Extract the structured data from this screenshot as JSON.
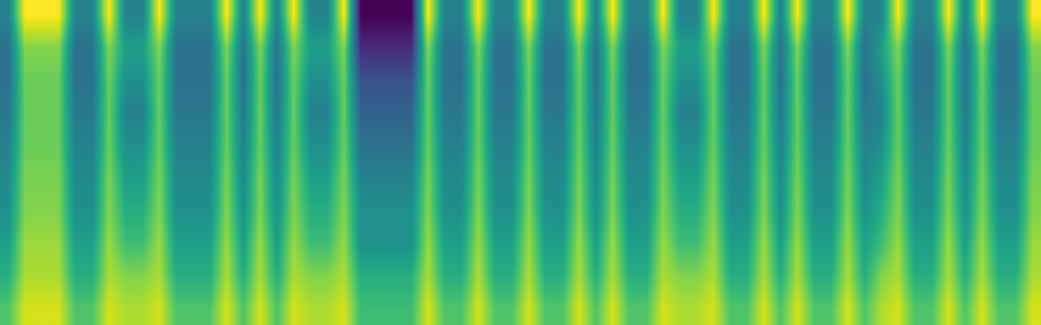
{
  "chart_data": {
    "type": "heatmap",
    "color": "viridis",
    "tick_labels": false,
    "cells": [
      [
        0.45,
        0.9,
        0.9,
        0.9,
        0.45,
        0.45,
        0.9,
        0.45,
        0.45,
        0.9,
        0.45,
        0.45,
        0.45,
        0.9,
        0.45,
        0.9,
        0.45,
        0.9,
        0.45,
        0.45,
        0.9,
        0.1,
        0.1,
        0.1,
        0.1,
        0.9,
        0.45,
        0.45,
        0.9,
        0.45,
        0.45,
        0.9,
        0.45,
        0.45,
        0.9,
        0.45,
        0.9,
        0.45,
        0.45,
        0.9,
        0.45,
        0.45,
        0.9,
        0.45,
        0.45,
        0.9,
        0.45,
        0.9,
        0.45,
        0.45,
        0.9,
        0.45,
        0.45,
        0.9,
        0.45,
        0.45,
        0.9,
        0.45,
        0.9,
        0.45,
        0.45,
        0.9
      ],
      [
        0.4,
        0.75,
        0.75,
        0.75,
        0.4,
        0.4,
        0.75,
        0.55,
        0.55,
        0.75,
        0.4,
        0.4,
        0.4,
        0.75,
        0.4,
        0.75,
        0.4,
        0.75,
        0.55,
        0.55,
        0.75,
        0.2,
        0.2,
        0.2,
        0.2,
        0.75,
        0.4,
        0.4,
        0.75,
        0.4,
        0.4,
        0.75,
        0.4,
        0.4,
        0.75,
        0.4,
        0.75,
        0.4,
        0.4,
        0.75,
        0.55,
        0.55,
        0.75,
        0.4,
        0.4,
        0.75,
        0.4,
        0.75,
        0.4,
        0.4,
        0.75,
        0.4,
        0.55,
        0.75,
        0.4,
        0.4,
        0.75,
        0.4,
        0.75,
        0.4,
        0.4,
        0.75
      ],
      [
        0.4,
        0.72,
        0.72,
        0.72,
        0.4,
        0.4,
        0.72,
        0.5,
        0.5,
        0.72,
        0.4,
        0.4,
        0.4,
        0.72,
        0.4,
        0.72,
        0.4,
        0.72,
        0.5,
        0.5,
        0.72,
        0.3,
        0.3,
        0.3,
        0.3,
        0.72,
        0.4,
        0.4,
        0.72,
        0.4,
        0.4,
        0.72,
        0.4,
        0.4,
        0.72,
        0.4,
        0.72,
        0.4,
        0.4,
        0.72,
        0.5,
        0.5,
        0.72,
        0.4,
        0.4,
        0.72,
        0.4,
        0.72,
        0.4,
        0.4,
        0.72,
        0.4,
        0.5,
        0.72,
        0.4,
        0.4,
        0.72,
        0.4,
        0.72,
        0.4,
        0.4,
        0.72
      ],
      [
        0.42,
        0.72,
        0.72,
        0.72,
        0.42,
        0.42,
        0.72,
        0.45,
        0.45,
        0.72,
        0.42,
        0.42,
        0.42,
        0.72,
        0.42,
        0.72,
        0.42,
        0.72,
        0.45,
        0.45,
        0.72,
        0.35,
        0.35,
        0.35,
        0.35,
        0.72,
        0.42,
        0.42,
        0.72,
        0.42,
        0.42,
        0.72,
        0.42,
        0.42,
        0.72,
        0.42,
        0.72,
        0.42,
        0.42,
        0.72,
        0.45,
        0.45,
        0.72,
        0.42,
        0.42,
        0.72,
        0.42,
        0.72,
        0.42,
        0.42,
        0.72,
        0.42,
        0.45,
        0.72,
        0.42,
        0.42,
        0.72,
        0.42,
        0.72,
        0.42,
        0.42,
        0.72
      ],
      [
        0.45,
        0.72,
        0.72,
        0.72,
        0.45,
        0.45,
        0.72,
        0.5,
        0.5,
        0.72,
        0.45,
        0.45,
        0.45,
        0.72,
        0.45,
        0.72,
        0.45,
        0.72,
        0.5,
        0.5,
        0.72,
        0.4,
        0.4,
        0.4,
        0.4,
        0.72,
        0.45,
        0.45,
        0.72,
        0.45,
        0.45,
        0.72,
        0.45,
        0.45,
        0.72,
        0.45,
        0.72,
        0.45,
        0.45,
        0.72,
        0.5,
        0.5,
        0.72,
        0.45,
        0.45,
        0.72,
        0.45,
        0.72,
        0.45,
        0.45,
        0.72,
        0.45,
        0.5,
        0.72,
        0.45,
        0.45,
        0.72,
        0.45,
        0.72,
        0.45,
        0.45,
        0.72
      ],
      [
        0.48,
        0.74,
        0.74,
        0.74,
        0.48,
        0.48,
        0.74,
        0.55,
        0.55,
        0.74,
        0.48,
        0.48,
        0.48,
        0.74,
        0.48,
        0.74,
        0.48,
        0.74,
        0.55,
        0.55,
        0.74,
        0.45,
        0.45,
        0.45,
        0.45,
        0.74,
        0.48,
        0.48,
        0.74,
        0.48,
        0.48,
        0.74,
        0.48,
        0.48,
        0.74,
        0.48,
        0.74,
        0.48,
        0.48,
        0.74,
        0.55,
        0.55,
        0.74,
        0.48,
        0.48,
        0.74,
        0.48,
        0.74,
        0.48,
        0.48,
        0.74,
        0.48,
        0.55,
        0.74,
        0.48,
        0.48,
        0.74,
        0.48,
        0.74,
        0.48,
        0.48,
        0.74
      ],
      [
        0.5,
        0.75,
        0.75,
        0.75,
        0.5,
        0.5,
        0.75,
        0.6,
        0.6,
        0.75,
        0.5,
        0.5,
        0.5,
        0.75,
        0.5,
        0.75,
        0.5,
        0.75,
        0.6,
        0.6,
        0.75,
        0.5,
        0.5,
        0.5,
        0.5,
        0.75,
        0.5,
        0.5,
        0.75,
        0.5,
        0.5,
        0.75,
        0.5,
        0.5,
        0.75,
        0.5,
        0.75,
        0.5,
        0.5,
        0.75,
        0.6,
        0.6,
        0.75,
        0.5,
        0.5,
        0.75,
        0.5,
        0.75,
        0.5,
        0.5,
        0.75,
        0.5,
        0.6,
        0.75,
        0.5,
        0.5,
        0.75,
        0.5,
        0.75,
        0.5,
        0.5,
        0.75
      ],
      [
        0.55,
        0.78,
        0.78,
        0.78,
        0.55,
        0.55,
        0.78,
        0.65,
        0.65,
        0.78,
        0.55,
        0.55,
        0.55,
        0.78,
        0.55,
        0.78,
        0.55,
        0.78,
        0.65,
        0.65,
        0.78,
        0.5,
        0.5,
        0.5,
        0.5,
        0.78,
        0.55,
        0.55,
        0.78,
        0.55,
        0.55,
        0.78,
        0.55,
        0.55,
        0.78,
        0.55,
        0.78,
        0.55,
        0.55,
        0.78,
        0.65,
        0.65,
        0.78,
        0.55,
        0.55,
        0.78,
        0.55,
        0.78,
        0.55,
        0.55,
        0.78,
        0.55,
        0.65,
        0.78,
        0.55,
        0.55,
        0.78,
        0.55,
        0.78,
        0.55,
        0.55,
        0.78
      ],
      [
        0.6,
        0.8,
        0.8,
        0.8,
        0.6,
        0.6,
        0.8,
        0.75,
        0.75,
        0.8,
        0.6,
        0.6,
        0.6,
        0.8,
        0.6,
        0.8,
        0.6,
        0.8,
        0.75,
        0.75,
        0.8,
        0.6,
        0.6,
        0.6,
        0.6,
        0.8,
        0.6,
        0.6,
        0.8,
        0.6,
        0.6,
        0.8,
        0.6,
        0.6,
        0.8,
        0.6,
        0.8,
        0.6,
        0.6,
        0.8,
        0.75,
        0.75,
        0.8,
        0.6,
        0.6,
        0.8,
        0.6,
        0.8,
        0.6,
        0.6,
        0.8,
        0.6,
        0.75,
        0.8,
        0.6,
        0.6,
        0.8,
        0.6,
        0.8,
        0.6,
        0.6,
        0.8
      ],
      [
        0.68,
        0.85,
        0.85,
        0.85,
        0.68,
        0.68,
        0.85,
        0.8,
        0.8,
        0.85,
        0.68,
        0.68,
        0.68,
        0.85,
        0.68,
        0.85,
        0.68,
        0.85,
        0.8,
        0.8,
        0.85,
        0.65,
        0.65,
        0.65,
        0.65,
        0.85,
        0.68,
        0.68,
        0.85,
        0.68,
        0.68,
        0.85,
        0.68,
        0.68,
        0.85,
        0.68,
        0.85,
        0.68,
        0.68,
        0.85,
        0.8,
        0.8,
        0.85,
        0.68,
        0.68,
        0.85,
        0.68,
        0.85,
        0.68,
        0.68,
        0.85,
        0.68,
        0.8,
        0.85,
        0.68,
        0.68,
        0.85,
        0.68,
        0.85,
        0.68,
        0.68,
        0.85
      ]
    ]
  }
}
